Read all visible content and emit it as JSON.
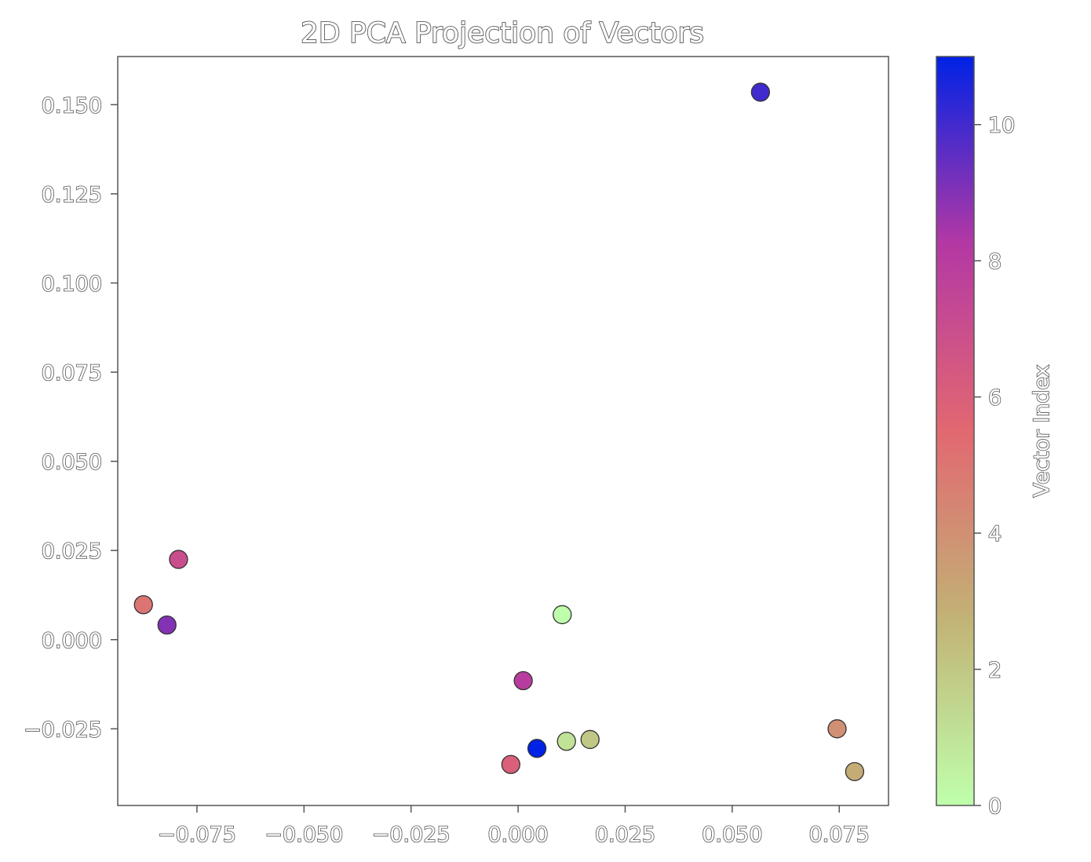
{
  "chart_data": {
    "type": "scatter",
    "title": "2D PCA Projection of Vectors",
    "xlabel": "",
    "ylabel": "",
    "xlim": [
      -0.0935,
      0.0865
    ],
    "ylim": [
      -0.0465,
      0.1635
    ],
    "x_ticks": [
      -0.075,
      -0.05,
      -0.025,
      0.0,
      0.025,
      0.05,
      0.075
    ],
    "x_tick_labels": [
      "−0.075",
      "−0.050",
      "−0.025",
      "0.000",
      "0.025",
      "0.050",
      "0.075"
    ],
    "y_ticks": [
      -0.025,
      0.0,
      0.025,
      0.05,
      0.075,
      0.1,
      0.125,
      0.15
    ],
    "y_tick_labels": [
      "−0.025",
      "0.000",
      "0.025",
      "0.050",
      "0.075",
      "0.100",
      "0.125",
      "0.150"
    ],
    "grid": false,
    "colormap": [
      "#bfffab",
      "#c2b275",
      "#e26871",
      "#b438a4",
      "#0022e6"
    ],
    "points": [
      {
        "x": 0.0103,
        "y": 0.007,
        "index": 0
      },
      {
        "x": 0.0113,
        "y": -0.0285,
        "index": 1
      },
      {
        "x": 0.0168,
        "y": -0.028,
        "index": 2
      },
      {
        "x": 0.0786,
        "y": -0.037,
        "index": 3
      },
      {
        "x": 0.0745,
        "y": -0.025,
        "index": 4
      },
      {
        "x": -0.0875,
        "y": 0.0098,
        "index": 5
      },
      {
        "x": -0.0017,
        "y": -0.035,
        "index": 6
      },
      {
        "x": -0.0793,
        "y": 0.0225,
        "index": 7
      },
      {
        "x": 0.0012,
        "y": -0.0115,
        "index": 8
      },
      {
        "x": -0.082,
        "y": 0.0041,
        "index": 9
      },
      {
        "x": 0.0566,
        "y": 0.1535,
        "index": 10
      },
      {
        "x": 0.0044,
        "y": -0.0305,
        "index": 11
      }
    ],
    "colorbar": {
      "label": "Vector Index",
      "range": [
        0,
        11
      ],
      "ticks": [
        0,
        2,
        4,
        6,
        8,
        10
      ],
      "tick_labels": [
        "0",
        "2",
        "4",
        "6",
        "8",
        "10"
      ]
    }
  }
}
